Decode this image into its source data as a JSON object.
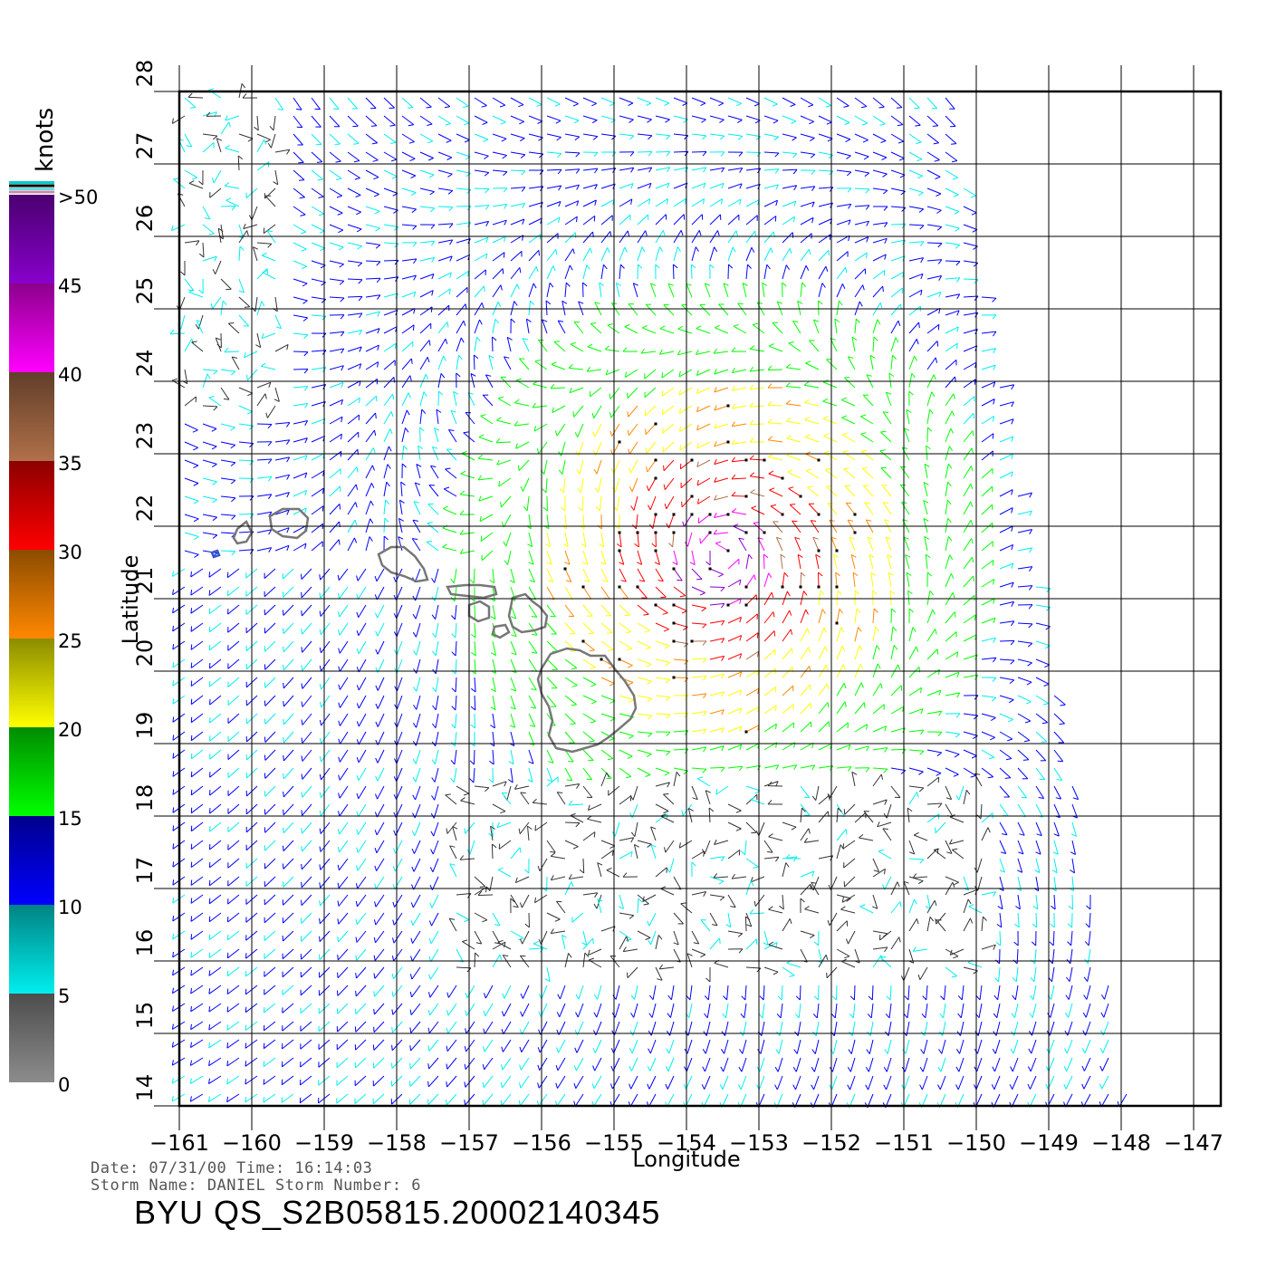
{
  "map": {
    "x_axis_label": "Longitude",
    "y_axis_label": "Latitude",
    "x_ticks": [
      "−161",
      "−160",
      "−159",
      "−158",
      "−157",
      "−156",
      "−155",
      "−154",
      "−153",
      "−152",
      "−151",
      "−150",
      "−149",
      "−148",
      "−147"
    ],
    "y_ticks": [
      "14",
      "15",
      "16",
      "17",
      "18",
      "19",
      "20",
      "21",
      "22",
      "23",
      "24",
      "25",
      "26",
      "27",
      "28"
    ],
    "lon_range": [
      -161,
      -147
    ],
    "lat_range": [
      14,
      28
    ],
    "storm_center": {
      "lon": -153.5,
      "lat": 21.6
    },
    "land_outline_color": "#777777",
    "grid_color": "#000000"
  },
  "legend": {
    "unit": "knots",
    "labels": [
      "0",
      "5",
      "10",
      "15",
      "20",
      "25",
      "30",
      "35",
      "40",
      "45",
      ">50"
    ],
    "colors": [
      "#8c8c8c",
      "#00eeee",
      "#0000ff",
      "#00ff00",
      "#ffff00",
      "#ff8800",
      "#ff0000",
      "#b0704a",
      "#ff00ff",
      "#8800cc"
    ]
  },
  "info": {
    "date_line": "Date: 07/31/00   Time: 16:14:03",
    "storm_line": "Storm Name: DANIEL   Storm Number: 6",
    "title": "BYU QS_S2B05815.20002140345"
  }
}
